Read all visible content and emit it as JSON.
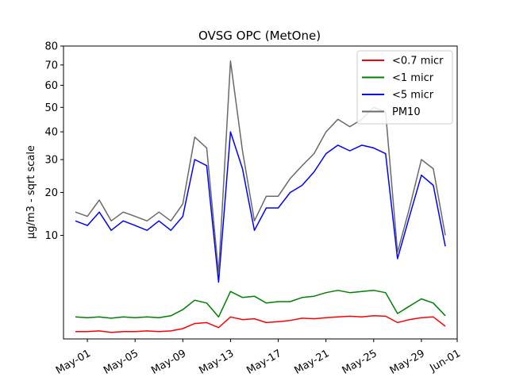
{
  "chart_data": {
    "type": "line",
    "title": "OVSG OPC (MetOne)",
    "xlabel": "",
    "ylabel": "µg/m3 - sqrt scale",
    "y_scale": "sqrt",
    "ylim": [
      0,
      80
    ],
    "yticks": [
      10,
      20,
      30,
      40,
      50,
      60,
      70,
      80
    ],
    "xlim": [
      "2021-04-29",
      "2021-06-01"
    ],
    "xticks": [
      "May-01",
      "May-05",
      "May-09",
      "May-13",
      "May-17",
      "May-21",
      "May-25",
      "May-29",
      "Jun-01"
    ],
    "xtick_dates": [
      "2021-05-01",
      "2021-05-05",
      "2021-05-09",
      "2021-05-13",
      "2021-05-17",
      "2021-05-21",
      "2021-05-25",
      "2021-05-29",
      "2021-06-01"
    ],
    "grid": false,
    "legend_position": "top-right",
    "series": [
      {
        "name": "<0.7 micr",
        "color": "#ff0000",
        "x": [
          "2021-04-30",
          "2021-05-01",
          "2021-05-02",
          "2021-05-03",
          "2021-05-04",
          "2021-05-05",
          "2021-05-06",
          "2021-05-07",
          "2021-05-08",
          "2021-05-09",
          "2021-05-10",
          "2021-05-11",
          "2021-05-12",
          "2021-05-13",
          "2021-05-14",
          "2021-05-15",
          "2021-05-16",
          "2021-05-17",
          "2021-05-18",
          "2021-05-19",
          "2021-05-20",
          "2021-05-21",
          "2021-05-22",
          "2021-05-23",
          "2021-05-24",
          "2021-05-25",
          "2021-05-26",
          "2021-05-27",
          "2021-05-28",
          "2021-05-29",
          "2021-05-30",
          "2021-05-31"
        ],
        "values": [
          0.05,
          0.05,
          0.06,
          0.04,
          0.05,
          0.05,
          0.06,
          0.05,
          0.06,
          0.1,
          0.22,
          0.25,
          0.12,
          0.45,
          0.35,
          0.38,
          0.25,
          0.28,
          0.32,
          0.4,
          0.38,
          0.42,
          0.45,
          0.48,
          0.45,
          0.5,
          0.48,
          0.25,
          0.35,
          0.42,
          0.45,
          0.15
        ]
      },
      {
        "name": "<1 micr",
        "color": "#008000",
        "x": [
          "2021-04-30",
          "2021-05-01",
          "2021-05-02",
          "2021-05-03",
          "2021-05-04",
          "2021-05-05",
          "2021-05-06",
          "2021-05-07",
          "2021-05-08",
          "2021-05-09",
          "2021-05-10",
          "2021-05-11",
          "2021-05-12",
          "2021-05-13",
          "2021-05-14",
          "2021-05-15",
          "2021-05-16",
          "2021-05-17",
          "2021-05-18",
          "2021-05-19",
          "2021-05-20",
          "2021-05-21",
          "2021-05-22",
          "2021-05-23",
          "2021-05-24",
          "2021-05-25",
          "2021-05-26",
          "2021-05-27",
          "2021-05-28",
          "2021-05-29",
          "2021-05-30",
          "2021-05-31"
        ],
        "values": [
          0.45,
          0.42,
          0.45,
          0.4,
          0.45,
          0.42,
          0.45,
          0.42,
          0.5,
          0.8,
          1.4,
          1.2,
          0.45,
          2.1,
          1.6,
          1.7,
          1.2,
          1.3,
          1.3,
          1.6,
          1.7,
          2.0,
          2.2,
          2.0,
          2.1,
          2.2,
          2.0,
          0.6,
          1.0,
          1.5,
          1.2,
          0.5
        ]
      },
      {
        "name": "<5 micr",
        "color": "#0000ff",
        "x": [
          "2021-04-30",
          "2021-05-01",
          "2021-05-02",
          "2021-05-03",
          "2021-05-04",
          "2021-05-05",
          "2021-05-06",
          "2021-05-07",
          "2021-05-08",
          "2021-05-09",
          "2021-05-10",
          "2021-05-11",
          "2021-05-12",
          "2021-05-13",
          "2021-05-14",
          "2021-05-15",
          "2021-05-16",
          "2021-05-17",
          "2021-05-18",
          "2021-05-19",
          "2021-05-20",
          "2021-05-21",
          "2021-05-22",
          "2021-05-23",
          "2021-05-24",
          "2021-05-25",
          "2021-05-26",
          "2021-05-27",
          "2021-05-28",
          "2021-05-29",
          "2021-05-30",
          "2021-05-31"
        ],
        "values": [
          13,
          12,
          15,
          11,
          13,
          12,
          11,
          13,
          11,
          14,
          30,
          28,
          3,
          40,
          27,
          11,
          16,
          16,
          20,
          22,
          26,
          32,
          35,
          33,
          35,
          34,
          32,
          6,
          14,
          25,
          22,
          8
        ]
      },
      {
        "name": "PM10",
        "color": "#696969",
        "x": [
          "2021-04-30",
          "2021-05-01",
          "2021-05-02",
          "2021-05-03",
          "2021-05-04",
          "2021-05-05",
          "2021-05-06",
          "2021-05-07",
          "2021-05-08",
          "2021-05-09",
          "2021-05-10",
          "2021-05-11",
          "2021-05-12",
          "2021-05-13",
          "2021-05-14",
          "2021-05-15",
          "2021-05-16",
          "2021-05-17",
          "2021-05-18",
          "2021-05-19",
          "2021-05-20",
          "2021-05-21",
          "2021-05-22",
          "2021-05-23",
          "2021-05-24",
          "2021-05-25",
          "2021-05-26",
          "2021-05-27",
          "2021-05-28",
          "2021-05-29",
          "2021-05-30",
          "2021-05-31"
        ],
        "values": [
          15,
          14,
          18,
          13,
          15,
          14,
          13,
          15,
          13,
          17,
          38,
          34,
          4,
          72,
          33,
          13,
          19,
          19,
          24,
          28,
          32,
          40,
          45,
          42,
          45,
          50,
          48,
          7,
          16,
          30,
          27,
          10
        ]
      }
    ]
  }
}
